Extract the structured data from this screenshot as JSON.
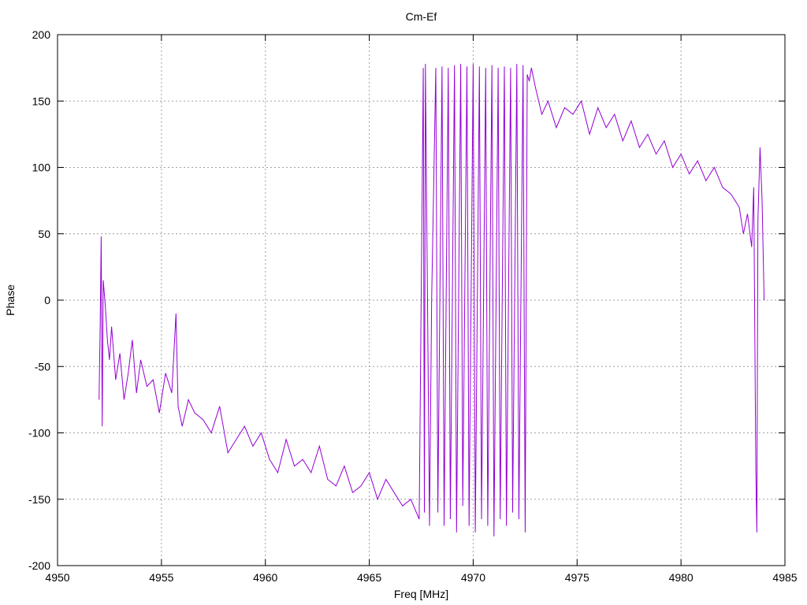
{
  "chart_data": {
    "type": "line",
    "title": "Cm-Ef",
    "xlabel": "Freq [MHz]",
    "ylabel": "Phase",
    "xlim": [
      4950,
      4985
    ],
    "ylim": [
      -200,
      200
    ],
    "xticks": [
      4950,
      4955,
      4960,
      4965,
      4970,
      4975,
      4980,
      4985
    ],
    "yticks": [
      -200,
      -150,
      -100,
      -50,
      0,
      50,
      100,
      150,
      200
    ],
    "grid": true,
    "legend": "none",
    "series": [
      {
        "color": "#9400d3",
        "x": [
          4952.0,
          4952.05,
          4952.1,
          4952.15,
          4952.2,
          4952.3,
          4952.4,
          4952.5,
          4952.6,
          4952.8,
          4953.0,
          4953.2,
          4953.4,
          4953.6,
          4953.8,
          4954.0,
          4954.3,
          4954.6,
          4954.9,
          4955.2,
          4955.5,
          4955.7,
          4955.8,
          4956.0,
          4956.3,
          4956.6,
          4957.0,
          4957.4,
          4957.8,
          4958.2,
          4958.6,
          4959.0,
          4959.4,
          4959.8,
          4960.2,
          4960.6,
          4961.0,
          4961.4,
          4961.8,
          4962.2,
          4962.6,
          4963.0,
          4963.4,
          4963.8,
          4964.2,
          4964.6,
          4965.0,
          4965.4,
          4965.8,
          4966.2,
          4966.6,
          4967.0,
          4967.4,
          4967.6,
          4967.65,
          4967.7,
          4967.9,
          4968.0,
          4968.2,
          4968.3,
          4968.5,
          4968.6,
          4968.8,
          4968.9,
          4969.1,
          4969.2,
          4969.4,
          4969.5,
          4969.7,
          4969.8,
          4970.0,
          4970.1,
          4970.3,
          4970.4,
          4970.6,
          4970.7,
          4970.9,
          4971.0,
          4971.2,
          4971.3,
          4971.5,
          4971.6,
          4971.8,
          4971.9,
          4972.1,
          4972.2,
          4972.4,
          4972.5,
          4972.6,
          4972.7,
          4972.8,
          4973.0,
          4973.3,
          4973.6,
          4974.0,
          4974.4,
          4974.8,
          4975.2,
          4975.6,
          4976.0,
          4976.4,
          4976.8,
          4977.2,
          4977.6,
          4978.0,
          4978.4,
          4978.8,
          4979.2,
          4979.6,
          4980.0,
          4980.4,
          4980.8,
          4981.2,
          4981.6,
          4982.0,
          4982.4,
          4982.8,
          4983.0,
          4983.2,
          4983.4,
          4983.5,
          4983.6,
          4983.65,
          4983.7,
          4983.8,
          4983.9,
          4984.0
        ],
        "y": [
          -75,
          -20,
          48,
          -95,
          15,
          -5,
          -30,
          -45,
          -20,
          -60,
          -40,
          -75,
          -55,
          -30,
          -70,
          -45,
          -65,
          -60,
          -85,
          -55,
          -70,
          -10,
          -80,
          -95,
          -75,
          -85,
          -90,
          -100,
          -80,
          -115,
          -105,
          -95,
          -110,
          -100,
          -120,
          -130,
          -105,
          -125,
          -120,
          -130,
          -110,
          -135,
          -140,
          -125,
          -145,
          -140,
          -130,
          -150,
          -135,
          -145,
          -155,
          -150,
          -165,
          175,
          -160,
          178,
          -170,
          0,
          175,
          -160,
          176,
          -170,
          175,
          -165,
          177,
          -175,
          178,
          -155,
          176,
          -170,
          178,
          -175,
          176,
          -165,
          175,
          -170,
          177,
          -178,
          175,
          -165,
          176,
          -170,
          175,
          -160,
          178,
          -165,
          177,
          -175,
          170,
          165,
          175,
          160,
          140,
          150,
          130,
          145,
          140,
          150,
          125,
          145,
          130,
          140,
          120,
          135,
          115,
          125,
          110,
          120,
          100,
          110,
          95,
          105,
          90,
          100,
          85,
          80,
          70,
          50,
          65,
          40,
          85,
          -130,
          -175,
          60,
          115,
          75,
          0
        ]
      }
    ]
  }
}
